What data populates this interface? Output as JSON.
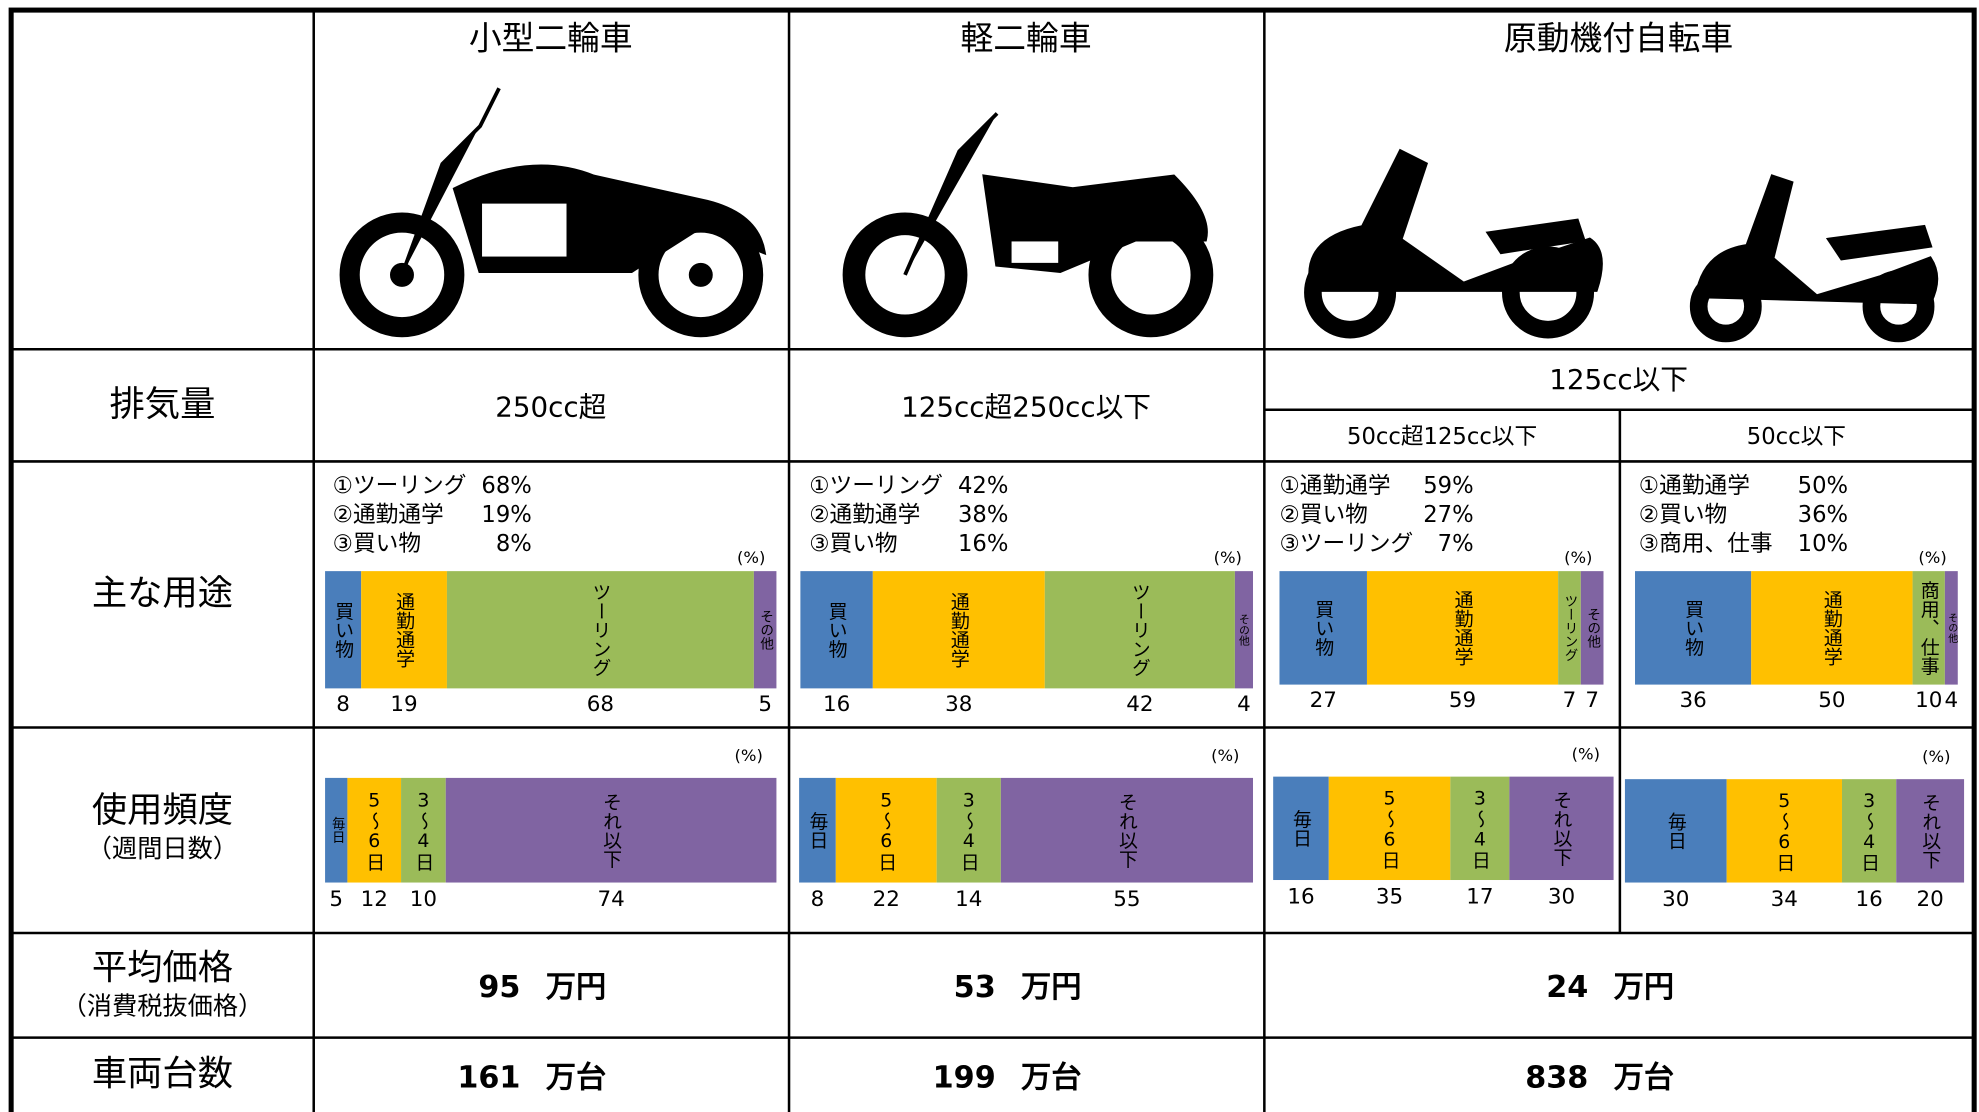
{
  "columns": [
    "小型二輪車",
    "軽二輪車",
    "原動機付自転車"
  ],
  "displacement": {
    "label": "排気量",
    "values": [
      "250cc超",
      "125cc超250cc以下",
      "125cc以下"
    ],
    "subvalues": [
      "50cc超125cc以下",
      "50cc以下"
    ]
  },
  "usage": {
    "label": "主な用途",
    "unit": "(%)",
    "panels": [
      {
        "top": [
          [
            "①ツーリング",
            "68%"
          ],
          [
            "②通勤通学",
            "19%"
          ],
          [
            "③買い物",
            "8%"
          ]
        ],
        "segments": [
          {
            "name": "買い物",
            "value": 8,
            "color": "#4a7ebb"
          },
          {
            "name": "通勤通学",
            "value": 19,
            "color": "#ffc000"
          },
          {
            "name": "ツーリング",
            "value": 68,
            "color": "#9bbb59"
          },
          {
            "name": "その他",
            "value": 5,
            "color": "#8064a2"
          }
        ]
      },
      {
        "top": [
          [
            "①ツーリング",
            "42%"
          ],
          [
            "②通勤通学",
            "38%"
          ],
          [
            "③買い物",
            "16%"
          ]
        ],
        "segments": [
          {
            "name": "買い物",
            "value": 16,
            "color": "#4a7ebb"
          },
          {
            "name": "通勤通学",
            "value": 38,
            "color": "#ffc000"
          },
          {
            "name": "ツーリング",
            "value": 42,
            "color": "#9bbb59"
          },
          {
            "name": "その他",
            "value": 4,
            "color": "#8064a2"
          }
        ]
      },
      {
        "top": [
          [
            "①通勤通学",
            "59%"
          ],
          [
            "②買い物",
            "27%"
          ],
          [
            "③ツーリング",
            "7%"
          ]
        ],
        "segments": [
          {
            "name": "買い物",
            "value": 27,
            "color": "#4a7ebb"
          },
          {
            "name": "通勤通学",
            "value": 59,
            "color": "#ffc000"
          },
          {
            "name": "ツーリング",
            "value": 7,
            "color": "#9bbb59"
          },
          {
            "name": "その他",
            "value": 7,
            "color": "#8064a2"
          }
        ]
      },
      {
        "top": [
          [
            "①通勤通学",
            "50%"
          ],
          [
            "②買い物",
            "36%"
          ],
          [
            "③商用、仕事",
            "10%"
          ]
        ],
        "segments": [
          {
            "name": "買い物",
            "value": 36,
            "color": "#4a7ebb"
          },
          {
            "name": "通勤通学",
            "value": 50,
            "color": "#ffc000"
          },
          {
            "name": "商用、仕事",
            "value": 10,
            "color": "#9bbb59"
          },
          {
            "name": "その他",
            "value": 4,
            "color": "#8064a2"
          }
        ]
      }
    ]
  },
  "frequency": {
    "label": "使用頻度",
    "note": "（週間日数）",
    "unit": "(%)",
    "categories": [
      "毎日",
      "5～6日",
      "3～4日",
      "それ以下"
    ],
    "colors": [
      "#4a7ebb",
      "#ffc000",
      "#9bbb59",
      "#8064a2"
    ],
    "panels": [
      [
        5,
        12,
        10,
        74
      ],
      [
        8,
        22,
        14,
        55
      ],
      [
        16,
        35,
        17,
        30
      ],
      [
        30,
        34,
        16,
        20
      ]
    ]
  },
  "price": {
    "label": "平均価格",
    "note": "（消費税抜価格）",
    "unit": "万円",
    "values": [
      95,
      53,
      24
    ]
  },
  "count": {
    "label": "車両台数",
    "unit": "万台",
    "values": [
      161,
      199,
      838
    ]
  }
}
